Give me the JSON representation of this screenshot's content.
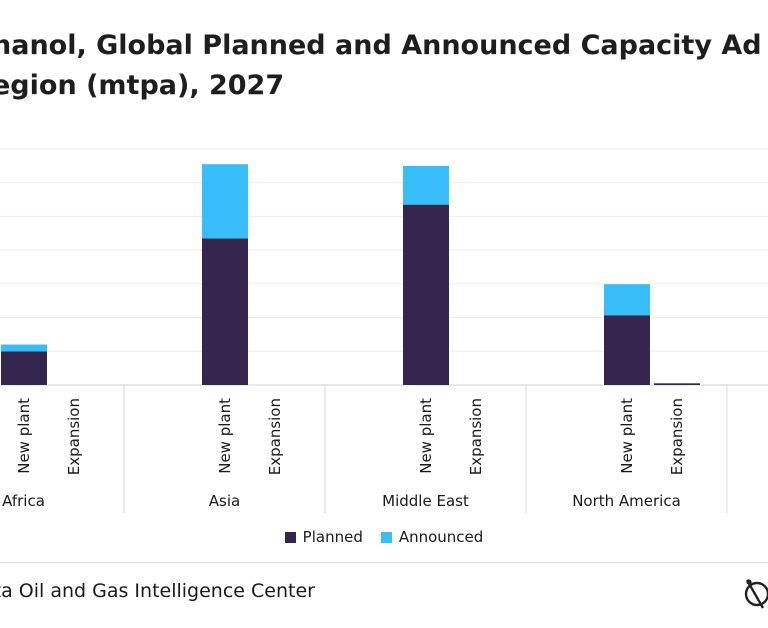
{
  "title_lines": [
    "hanol, Global Planned and Announced Capacity Ad",
    "egion (mtpa), 2027"
  ],
  "source": "ata Oil and Gas Intelligence Center",
  "chart_data": {
    "type": "bar",
    "stacked": true,
    "groups": [
      "Africa",
      "Asia",
      "Middle East",
      "North America"
    ],
    "categories": [
      "New plant",
      "Expansion"
    ],
    "series": [
      {
        "name": "Planned",
        "color": "#35264f",
        "values": [
          [
            1.0,
            0.0
          ],
          [
            4.35,
            0.0
          ],
          [
            5.35,
            0.0
          ],
          [
            2.07,
            0.05
          ]
        ]
      },
      {
        "name": "Announced",
        "color": "#38bdf8",
        "values": [
          [
            0.2,
            0.0
          ],
          [
            2.2,
            0.0
          ],
          [
            1.15,
            0.0
          ],
          [
            0.92,
            0.0
          ]
        ]
      }
    ],
    "ylim": [
      0,
      7
    ],
    "grid": true,
    "legend": "bottom"
  }
}
